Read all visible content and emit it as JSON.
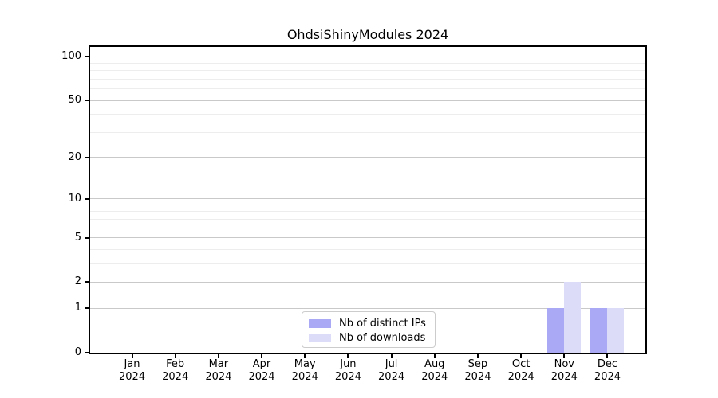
{
  "title": "OhdsiShinyModules 2024",
  "chart_data": {
    "type": "bar",
    "title": "OhdsiShinyModules 2024",
    "xlabel": "",
    "ylabel": "",
    "x_year": "2024",
    "categories": [
      "Jan",
      "Feb",
      "Mar",
      "Apr",
      "May",
      "Jun",
      "Jul",
      "Aug",
      "Sep",
      "Oct",
      "Nov",
      "Dec"
    ],
    "series": [
      {
        "name": "Nb of distinct IPs",
        "color": "#a9a9f6",
        "values": [
          0,
          0,
          0,
          0,
          0,
          0,
          0,
          0,
          0,
          0,
          1,
          1
        ]
      },
      {
        "name": "Nb of downloads",
        "color": "#dcdcf8",
        "values": [
          0,
          0,
          0,
          0,
          0,
          0,
          0,
          0,
          0,
          0,
          2,
          1
        ]
      }
    ],
    "y_scale": "log10(value+1)",
    "y_major_ticks": [
      0,
      1,
      2,
      5,
      10,
      20,
      50,
      100
    ],
    "y_minor_ticks": [
      3,
      4,
      6,
      7,
      8,
      9,
      30,
      40,
      60,
      70,
      80,
      90
    ],
    "ylim": [
      0,
      116
    ],
    "grid": "horizontal",
    "legend_position": "inside-bottom-center",
    "colors": {
      "frame": "#000000",
      "grid_major": "#c9c9c9",
      "grid_minor": "#ededed",
      "background": "#ffffff",
      "text": "#000000"
    }
  }
}
